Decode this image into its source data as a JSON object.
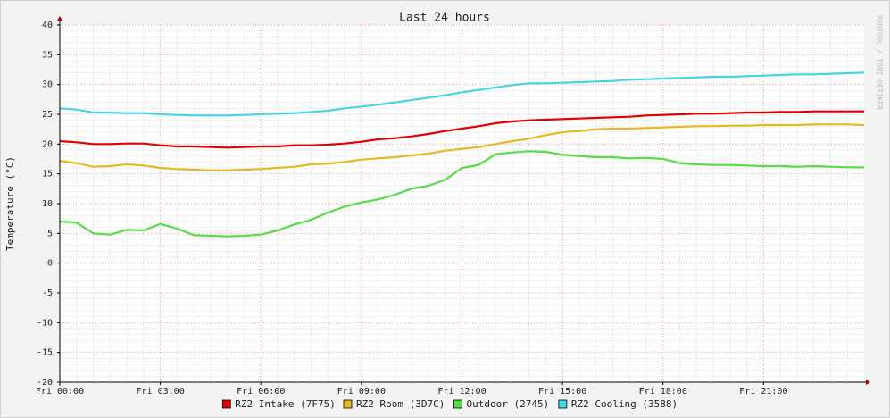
{
  "chart_data": {
    "type": "line",
    "title": "Last 24 hours",
    "y_label": "Temperature (°C)",
    "watermark": "RRDTOOL / TOBI OETIKER",
    "x": [
      0,
      0.5,
      1,
      1.5,
      2,
      2.5,
      3,
      3.5,
      4,
      4.5,
      5,
      5.5,
      6,
      6.5,
      7,
      7.5,
      8,
      8.5,
      9,
      9.5,
      10,
      10.5,
      11,
      11.5,
      12,
      12.5,
      13,
      13.5,
      14,
      14.5,
      15,
      15.5,
      16,
      16.5,
      17,
      17.5,
      18,
      18.5,
      19,
      19.5,
      20,
      20.5,
      21,
      21.5,
      22,
      22.5,
      23,
      23.5,
      24
    ],
    "xlim": [
      0,
      24
    ],
    "xticks": [
      {
        "value": 0,
        "label": "Fri 00:00"
      },
      {
        "value": 3,
        "label": "Fri 03:00"
      },
      {
        "value": 6,
        "label": "Fri 06:00"
      },
      {
        "value": 9,
        "label": "Fri 09:00"
      },
      {
        "value": 12,
        "label": "Fri 12:00"
      },
      {
        "value": 15,
        "label": "Fri 15:00"
      },
      {
        "value": 18,
        "label": "Fri 18:00"
      },
      {
        "value": 21,
        "label": "Fri 21:00"
      }
    ],
    "ylim": [
      -20,
      40
    ],
    "yticks": [
      -20,
      -15,
      -10,
      -5,
      0,
      5,
      10,
      15,
      20,
      25,
      30,
      35,
      40
    ],
    "grid": true,
    "legend": "bottom",
    "series": [
      {
        "name": "RZ2 Intake (7F75)",
        "color": "#e00000",
        "values": [
          20.5,
          20.3,
          20,
          20,
          20.1,
          20.1,
          19.8,
          19.6,
          19.6,
          19.5,
          19.4,
          19.5,
          19.6,
          19.6,
          19.8,
          19.8,
          19.9,
          20.1,
          20.4,
          20.8,
          21,
          21.3,
          21.7,
          22.2,
          22.6,
          23,
          23.5,
          23.8,
          24,
          24.1,
          24.2,
          24.3,
          24.4,
          24.5,
          24.6,
          24.8,
          24.9,
          25,
          25.1,
          25.1,
          25.2,
          25.3,
          25.3,
          25.4,
          25.4,
          25.5,
          25.5,
          25.5,
          25.5
        ]
      },
      {
        "name": "RZ2 Room (3D7C)",
        "color": "#e8b820",
        "values": [
          17.2,
          16.8,
          16.2,
          16.3,
          16.6,
          16.4,
          16,
          15.8,
          15.7,
          15.6,
          15.6,
          15.7,
          15.8,
          16,
          16.2,
          16.6,
          16.7,
          17,
          17.4,
          17.6,
          17.8,
          18.1,
          18.4,
          18.9,
          19.2,
          19.5,
          20,
          20.5,
          20.9,
          21.5,
          22,
          22.2,
          22.5,
          22.6,
          22.6,
          22.7,
          22.8,
          22.9,
          23,
          23,
          23.1,
          23.1,
          23.2,
          23.2,
          23.2,
          23.3,
          23.3,
          23.3,
          23.2
        ]
      },
      {
        "name": "Outdoor (2745)",
        "color": "#55dd44",
        "values": [
          7,
          6.8,
          5,
          4.8,
          5.6,
          5.5,
          6.6,
          5.8,
          4.7,
          4.6,
          4.5,
          4.6,
          4.8,
          5.5,
          6.5,
          7.3,
          8.5,
          9.5,
          10.2,
          10.7,
          11.5,
          12.5,
          13,
          14,
          16,
          16.5,
          18.3,
          18.6,
          18.8,
          18.7,
          18.2,
          18,
          17.8,
          17.8,
          17.6,
          17.7,
          17.5,
          16.8,
          16.6,
          16.5,
          16.5,
          16.4,
          16.3,
          16.3,
          16.2,
          16.3,
          16.2,
          16.1,
          16.1
        ]
      },
      {
        "name": "RZ2 Cooling (3588)",
        "color": "#44d4e4",
        "values": [
          26,
          25.8,
          25.3,
          25.3,
          25.2,
          25.2,
          25,
          24.9,
          24.8,
          24.8,
          24.8,
          24.9,
          25,
          25.1,
          25.2,
          25.4,
          25.6,
          26,
          26.3,
          26.6,
          27,
          27.4,
          27.8,
          28.2,
          28.7,
          29.1,
          29.5,
          29.9,
          30.2,
          30.2,
          30.3,
          30.4,
          30.5,
          30.6,
          30.8,
          30.9,
          31,
          31.1,
          31.2,
          31.3,
          31.3,
          31.4,
          31.5,
          31.6,
          31.7,
          31.7,
          31.8,
          31.9,
          32
        ]
      }
    ]
  }
}
